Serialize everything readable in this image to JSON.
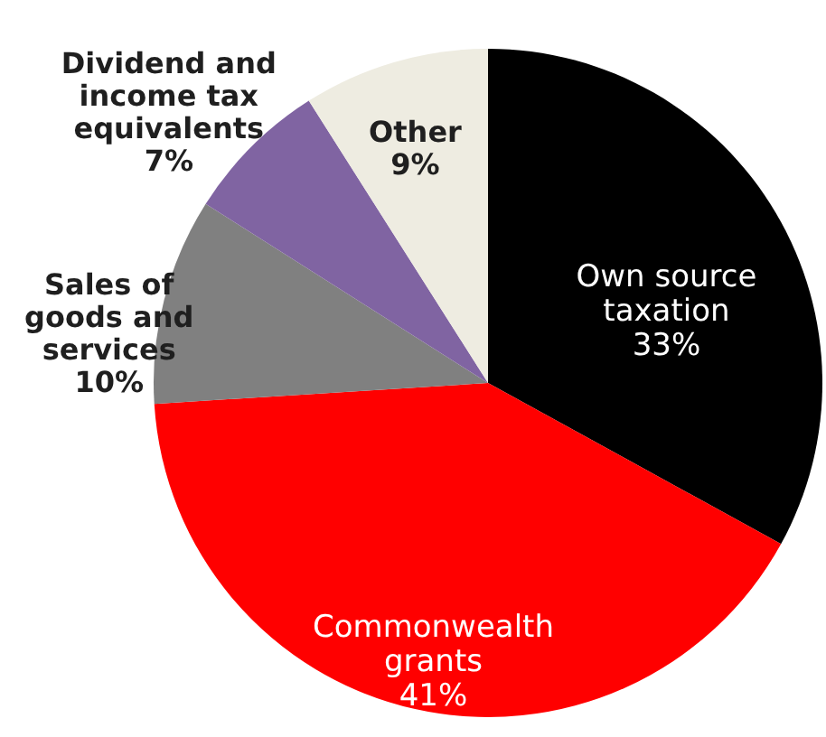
{
  "chart_data": {
    "type": "pie",
    "categories": [
      "Own source\ntaxation",
      "Commonwealth\ngrants",
      "Sales of\ngoods and\nservices",
      "Dividend and\nincome tax\nequivalents",
      "Other"
    ],
    "values": [
      33,
      41,
      10,
      7,
      9
    ],
    "value_labels": [
      "33%",
      "41%",
      "10%",
      "7%",
      "9%"
    ],
    "colors": [
      "#000000",
      "#ff0000",
      "#808080",
      "#8064a2",
      "#eeece1"
    ]
  }
}
